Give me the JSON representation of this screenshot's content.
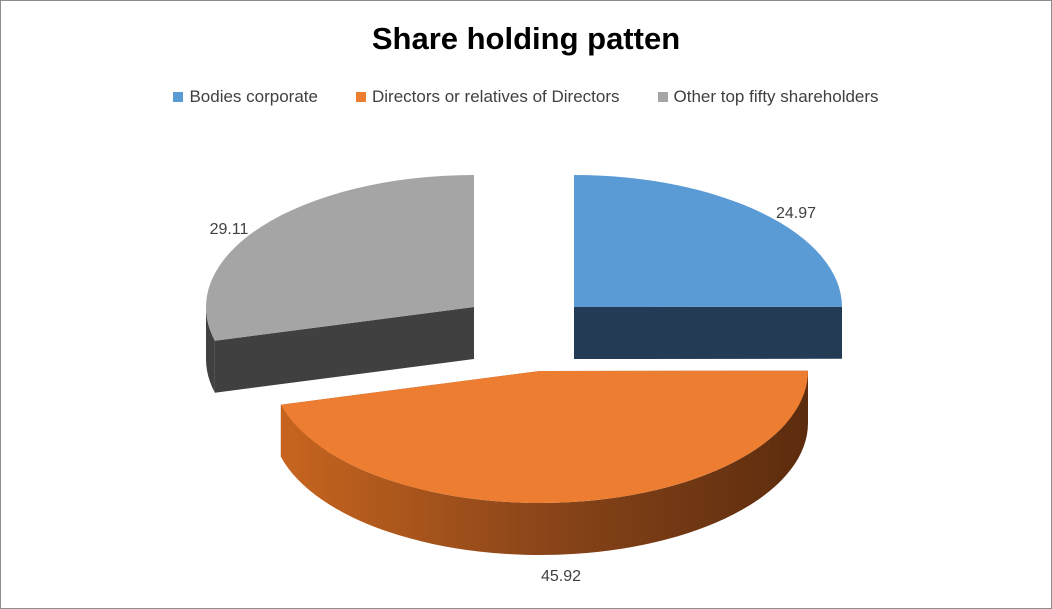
{
  "chart_data": {
    "type": "pie",
    "title": "Share holding patten",
    "categories": [
      "Bodies corporate",
      "Directors or relatives of Directors",
      "Other top fifty shareholders"
    ],
    "values": [
      24.97,
      45.92,
      29.11
    ],
    "value_labels": [
      "24.97",
      "45.92",
      "29.11"
    ],
    "colors": [
      "#5b9bd5",
      "#ed7d31",
      "#a5a5a5"
    ],
    "legend_position": "top",
    "exploded": true,
    "style": "3d"
  }
}
